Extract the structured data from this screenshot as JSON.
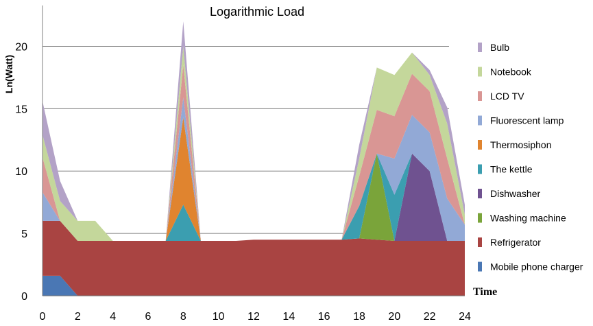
{
  "chart_data": {
    "type": "area",
    "stacked": true,
    "title": "Logarithmic Load",
    "xlabel": "Time",
    "ylabel": "Ln(Watt)",
    "xlim": [
      0,
      24
    ],
    "ylim": [
      0,
      22.5
    ],
    "x_ticks": [
      "0",
      "2",
      "4",
      "6",
      "8",
      "10",
      "12",
      "14",
      "16",
      "18",
      "20",
      "22",
      "24"
    ],
    "y_ticks": [
      "0",
      "5",
      "10",
      "15",
      "20"
    ],
    "grid": "horizontal",
    "legend_position": "right",
    "x": [
      0,
      1,
      2,
      3,
      4,
      5,
      6,
      7,
      8,
      9,
      10,
      11,
      12,
      13,
      14,
      15,
      16,
      17,
      18,
      19,
      20,
      21,
      22,
      23,
      24
    ],
    "series": [
      {
        "name": "Mobile phone charger",
        "color": "#4a77b4",
        "values": [
          1.6,
          1.6,
          0,
          0,
          0,
          0,
          0,
          0,
          0,
          0,
          0,
          0,
          0,
          0,
          0,
          0,
          0,
          0,
          0,
          0,
          0,
          0,
          0,
          0,
          0
        ]
      },
      {
        "name": "Refrigerator",
        "color": "#a94442",
        "values": [
          4.4,
          4.4,
          4.4,
          4.4,
          4.4,
          4.4,
          4.4,
          4.4,
          4.4,
          4.4,
          4.4,
          4.4,
          4.5,
          4.5,
          4.5,
          4.5,
          4.5,
          4.5,
          4.6,
          4.5,
          4.4,
          4.4,
          4.4,
          4.4,
          4.4
        ]
      },
      {
        "name": "Washing machine",
        "color": "#7aa43a",
        "values": [
          0,
          0,
          0,
          0,
          0,
          0,
          0,
          0,
          0,
          0,
          0,
          0,
          0,
          0,
          0,
          0,
          0,
          0,
          0,
          6.9,
          0,
          0,
          0,
          0,
          0
        ]
      },
      {
        "name": "Dishwasher",
        "color": "#6f5290",
        "values": [
          0,
          0,
          0,
          0,
          0,
          0,
          0,
          0,
          0,
          0,
          0,
          0,
          0,
          0,
          0,
          0,
          0,
          0,
          0,
          0,
          0,
          7.0,
          5.6,
          0,
          0
        ]
      },
      {
        "name": "The kettle",
        "color": "#3b9eb0",
        "values": [
          0,
          0,
          0,
          0,
          0,
          0,
          0,
          0,
          2.9,
          0,
          0,
          0,
          0,
          0,
          0,
          0,
          0,
          0,
          2.6,
          0,
          3.7,
          0,
          0,
          0,
          0
        ]
      },
      {
        "name": "Thermosiphon",
        "color": "#e0842f",
        "values": [
          0,
          0,
          0,
          0,
          0,
          0,
          0,
          0,
          7.0,
          0,
          0,
          0,
          0,
          0,
          0,
          0,
          0,
          0,
          0,
          0,
          0,
          0,
          0,
          0,
          0
        ]
      },
      {
        "name": "Fluorescent lamp",
        "color": "#92a9d6",
        "values": [
          2.3,
          0,
          0,
          0,
          0,
          0,
          0,
          0,
          1.6,
          0,
          0,
          0,
          0,
          0,
          0,
          0,
          0,
          0,
          0,
          0,
          2.9,
          3.1,
          3.1,
          3.4,
          1.3
        ]
      },
      {
        "name": "LCD TV",
        "color": "#d99694",
        "values": [
          2.8,
          0,
          0,
          0,
          0,
          0,
          0,
          0,
          2.6,
          0,
          0,
          0,
          0,
          0,
          0,
          0,
          0,
          0,
          2.4,
          3.5,
          3.4,
          3.3,
          3.3,
          3.2,
          0
        ]
      },
      {
        "name": "Notebook",
        "color": "#c4d79b",
        "values": [
          1.8,
          1.6,
          1.6,
          1.6,
          0,
          0,
          0,
          0,
          1.5,
          0,
          0,
          0,
          0,
          0,
          0,
          0,
          0,
          0,
          1.4,
          3.4,
          3.3,
          1.7,
          1.3,
          2.8,
          0.8
        ]
      },
      {
        "name": "Bulb",
        "color": "#b3a2c7",
        "values": [
          2.7,
          1.6,
          0,
          0,
          0,
          0,
          0,
          0,
          2.0,
          0,
          0,
          0,
          0,
          0,
          0,
          0,
          0,
          0,
          1.1,
          0,
          0,
          0,
          0.4,
          1.3,
          0.8
        ]
      }
    ],
    "legend_order": [
      "Bulb",
      "Notebook",
      "LCD TV",
      "Fluorescent lamp",
      "Thermosiphon",
      "The kettle",
      "Dishwasher",
      "Washing machine",
      "Refrigerator",
      "Mobile phone charger"
    ]
  }
}
